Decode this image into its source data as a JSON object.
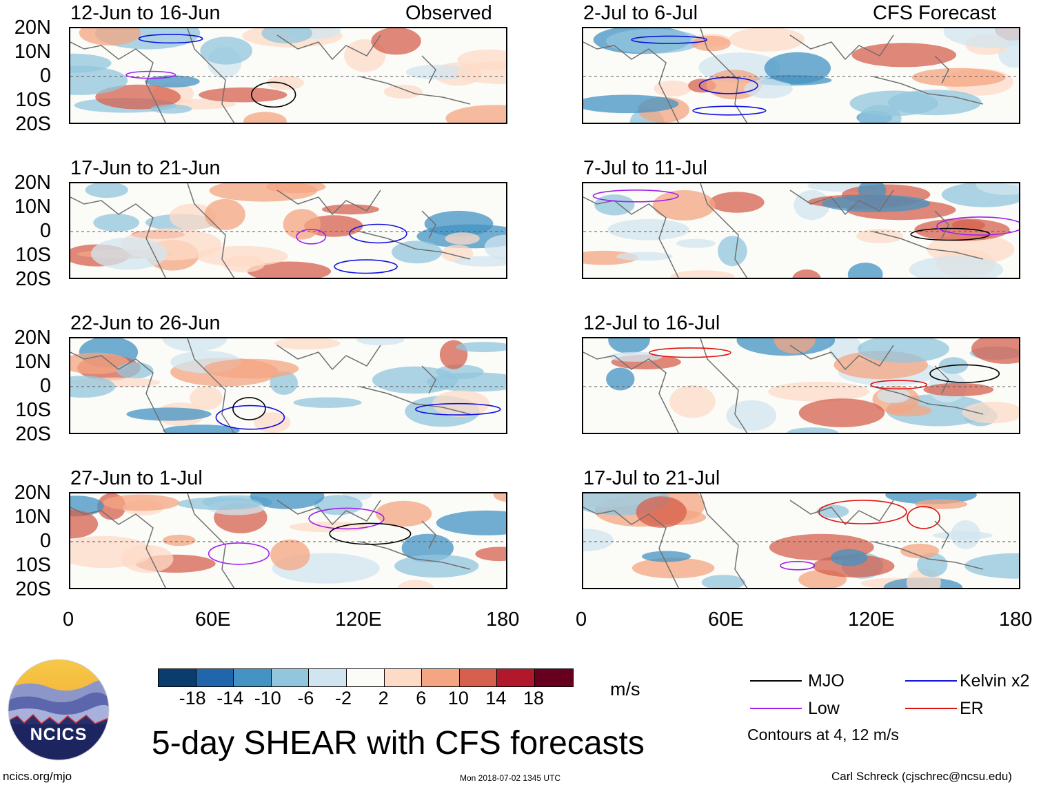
{
  "panel_type_left": "Observed",
  "panel_type_right": "CFS Forecast",
  "observed_periods": [
    "12-Jun to 16-Jun",
    "17-Jun to 21-Jun",
    "22-Jun to 26-Jun",
    "27-Jun to 1-Jul"
  ],
  "forecast_periods": [
    "2-Jul to 6-Jul",
    "7-Jul to 11-Jul",
    "12-Jul to 16-Jul",
    "17-Jul to 21-Jul"
  ],
  "lat_labels": [
    "20N",
    "10N",
    "0",
    "10S",
    "20S"
  ],
  "lon_labels": [
    "0",
    "60E",
    "120E",
    "180"
  ],
  "colorbar": {
    "ticks": [
      "-18",
      "-14",
      "-10",
      "-6",
      "-2",
      "2",
      "6",
      "10",
      "14",
      "18"
    ],
    "colors": [
      "#0a3d6e",
      "#2166ac",
      "#4393c3",
      "#92c5de",
      "#d1e5f0",
      "#fbfbf8",
      "#fddbc7",
      "#f4a582",
      "#d6604d",
      "#b2182b",
      "#67001f"
    ],
    "unit": "m/s"
  },
  "legend": {
    "mjo": "MJO",
    "kelvin": "Kelvin x2",
    "low": "Low",
    "er": "ER",
    "contours_note": "Contours at 4, 12 m/s",
    "colors": {
      "mjo": "#000000",
      "kelvin": "#1010e0",
      "low": "#a020f0",
      "er": "#e01010"
    }
  },
  "title": "5-day SHEAR with CFS forecasts",
  "footer": {
    "url": "ncics.org/mjo",
    "timestamp": "Mon 2018-07-02 1345 UTC",
    "author": "Carl Schreck (cjschrec@ncsu.edu)"
  },
  "logo_text": "NCICS"
}
